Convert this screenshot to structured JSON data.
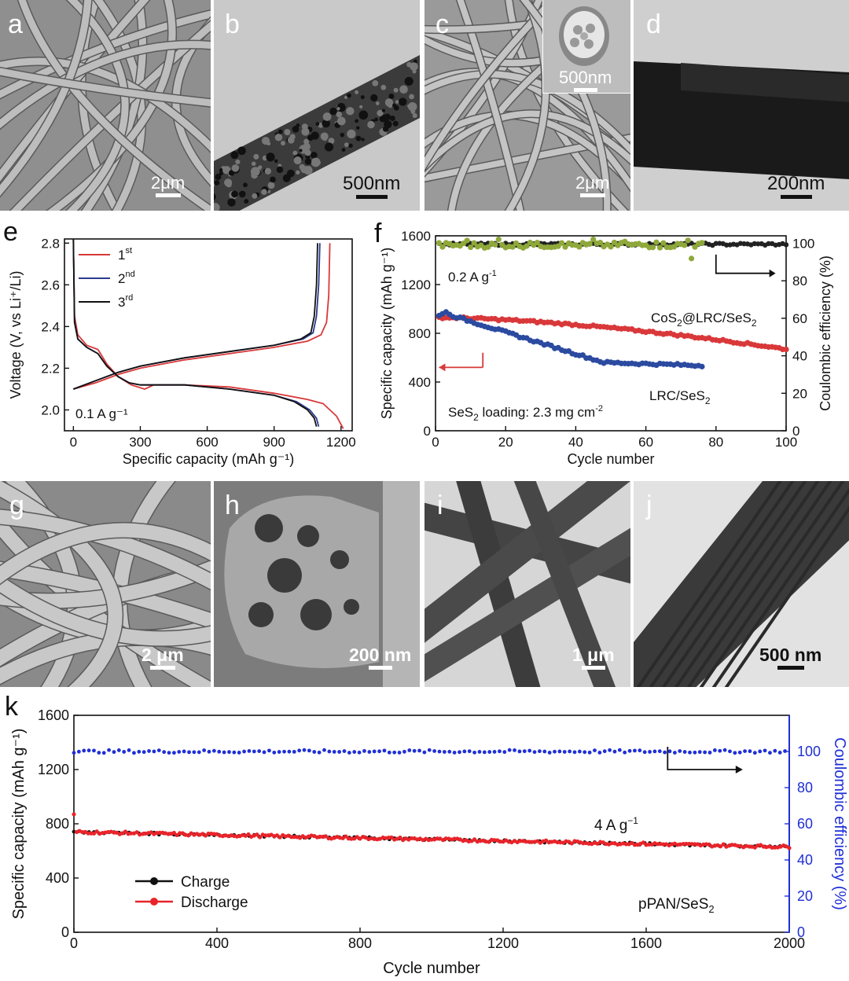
{
  "micrographs": [
    {
      "label": "a",
      "scale": "2μm",
      "type": "sem"
    },
    {
      "label": "b",
      "scale": "500nm",
      "type": "tem"
    },
    {
      "label": "c",
      "scale": "2μm",
      "inset_scale": "500nm",
      "type": "sem"
    },
    {
      "label": "d",
      "scale": "200nm",
      "type": "tem-dark"
    },
    {
      "label": "g",
      "scale": "2 μm",
      "type": "sem"
    },
    {
      "label": "h",
      "scale": "200 nm",
      "type": "sem-pore"
    },
    {
      "label": "i",
      "scale": "1 μm",
      "type": "tem-rods"
    },
    {
      "label": "j",
      "scale": "500 nm",
      "type": "tem-rod"
    }
  ],
  "chart_data": [
    {
      "label": "e",
      "type": "line",
      "xlabel": "Specific capacity (mAh g⁻¹)",
      "ylabel": "Voltage (V, vs Li⁺/Li)",
      "xlim": [
        -40,
        1250
      ],
      "ylim": [
        1.9,
        2.82
      ],
      "xticks": [
        0,
        300,
        600,
        900,
        1200
      ],
      "yticks": [
        2.0,
        2.2,
        2.4,
        2.6,
        2.8
      ],
      "annotation": "0.1 A g⁻¹",
      "legend_position": "top-left",
      "series": [
        {
          "name": "1st",
          "color": "#d9383a",
          "charge": [
            [
              0,
              2.1
            ],
            [
              100,
              2.13
            ],
            [
              200,
              2.17
            ],
            [
              300,
              2.2
            ],
            [
              500,
              2.24
            ],
            [
              700,
              2.27
            ],
            [
              900,
              2.3
            ],
            [
              1050,
              2.33
            ],
            [
              1110,
              2.36
            ],
            [
              1135,
              2.42
            ],
            [
              1145,
              2.55
            ],
            [
              1150,
              2.8
            ]
          ],
          "discharge": [
            [
              0,
              2.82
            ],
            [
              5,
              2.45
            ],
            [
              20,
              2.36
            ],
            [
              60,
              2.31
            ],
            [
              110,
              2.29
            ],
            [
              150,
              2.22
            ],
            [
              200,
              2.16
            ],
            [
              260,
              2.12
            ],
            [
              320,
              2.1
            ],
            [
              360,
              2.12
            ],
            [
              500,
              2.12
            ],
            [
              700,
              2.11
            ],
            [
              900,
              2.08
            ],
            [
              1050,
              2.05
            ],
            [
              1120,
              2.03
            ],
            [
              1180,
              1.97
            ],
            [
              1210,
              1.91
            ]
          ]
        },
        {
          "name": "2nd",
          "color": "#2b3a8c",
          "charge": [
            [
              0,
              2.1
            ],
            [
              100,
              2.14
            ],
            [
              200,
              2.18
            ],
            [
              300,
              2.21
            ],
            [
              500,
              2.25
            ],
            [
              700,
              2.28
            ],
            [
              900,
              2.31
            ],
            [
              1030,
              2.34
            ],
            [
              1075,
              2.37
            ],
            [
              1090,
              2.45
            ],
            [
              1100,
              2.6
            ],
            [
              1105,
              2.8
            ]
          ],
          "discharge": [
            [
              0,
              2.82
            ],
            [
              5,
              2.42
            ],
            [
              20,
              2.34
            ],
            [
              60,
              2.3
            ],
            [
              110,
              2.27
            ],
            [
              150,
              2.21
            ],
            [
              200,
              2.16
            ],
            [
              250,
              2.13
            ],
            [
              300,
              2.12
            ],
            [
              500,
              2.12
            ],
            [
              700,
              2.1
            ],
            [
              900,
              2.07
            ],
            [
              1000,
              2.04
            ],
            [
              1060,
              2.0
            ],
            [
              1090,
              1.96
            ],
            [
              1100,
              1.92
            ]
          ]
        },
        {
          "name": "3rd",
          "color": "#111111",
          "charge": [
            [
              0,
              2.1
            ],
            [
              100,
              2.14
            ],
            [
              200,
              2.18
            ],
            [
              300,
              2.21
            ],
            [
              500,
              2.25
            ],
            [
              700,
              2.28
            ],
            [
              900,
              2.31
            ],
            [
              1020,
              2.34
            ],
            [
              1065,
              2.37
            ],
            [
              1080,
              2.45
            ],
            [
              1090,
              2.6
            ],
            [
              1095,
              2.8
            ]
          ],
          "discharge": [
            [
              0,
              2.82
            ],
            [
              5,
              2.42
            ],
            [
              20,
              2.34
            ],
            [
              60,
              2.3
            ],
            [
              110,
              2.27
            ],
            [
              150,
              2.21
            ],
            [
              200,
              2.16
            ],
            [
              250,
              2.13
            ],
            [
              300,
              2.12
            ],
            [
              500,
              2.12
            ],
            [
              700,
              2.1
            ],
            [
              900,
              2.07
            ],
            [
              990,
              2.04
            ],
            [
              1050,
              2.0
            ],
            [
              1080,
              1.96
            ],
            [
              1090,
              1.92
            ]
          ]
        }
      ]
    },
    {
      "label": "f",
      "type": "scatter",
      "xlabel": "Cycle number",
      "ylabel": "Specific capacity (mAh g⁻¹)",
      "y2label": "Coulombic efficiency (%)",
      "xlim": [
        0,
        100
      ],
      "ylim": [
        0,
        1600
      ],
      "y2lim": [
        0,
        104
      ],
      "xticks": [
        0,
        20,
        40,
        60,
        80,
        100
      ],
      "yticks": [
        0,
        400,
        800,
        1200,
        1600
      ],
      "y2ticks": [
        0,
        20,
        40,
        60,
        80,
        100
      ],
      "annotations": [
        "0.2 A g⁻¹",
        "SeS₂ loading: 2.3 mg cm⁻²",
        "CoS₂@LRC/SeS₂",
        "LRC/SeS₂"
      ],
      "series": [
        {
          "name": "CoS₂@LRC/SeS₂",
          "color": "#d9383a",
          "axis": "left",
          "cycles": 100,
          "start": 930,
          "end": 670
        },
        {
          "name": "LRC/SeS₂",
          "color": "#2b4aa0",
          "axis": "left",
          "cycles": 76,
          "start": 960,
          "end": 490
        },
        {
          "name": "CE LRC/SeS₂",
          "color": "#8fa83a",
          "axis": "right",
          "cycles": 76,
          "mean": 99
        },
        {
          "name": "CE CoS₂@LRC/SeS₂",
          "color": "#222222",
          "axis": "right",
          "cycles": 100,
          "mean": 99.5
        }
      ]
    },
    {
      "label": "k",
      "type": "scatter",
      "xlabel": "Cycle number",
      "ylabel": "Specific capacity (mAh g⁻¹)",
      "y2label": "Coulombic efficiency (%)",
      "xlim": [
        0,
        2000
      ],
      "ylim": [
        0,
        1600
      ],
      "y2lim": [
        0,
        120
      ],
      "xticks": [
        0,
        400,
        800,
        1200,
        1600,
        2000
      ],
      "yticks": [
        0,
        400,
        800,
        1200,
        1600
      ],
      "y2ticks": [
        0,
        20,
        40,
        60,
        80,
        100
      ],
      "annotations": [
        "4 A g⁻¹",
        "pPAN/SeS₂"
      ],
      "legend_position": "bottom-left",
      "series": [
        {
          "name": "Charge",
          "color": "#111111",
          "axis": "left",
          "start": 740,
          "end": 630
        },
        {
          "name": "Discharge",
          "color": "#e8242a",
          "axis": "left",
          "start": 740,
          "end": 630,
          "first": 870
        },
        {
          "name": "Coulombic efficiency",
          "color": "#1f2fd6",
          "axis": "right",
          "mean": 100
        }
      ]
    }
  ]
}
